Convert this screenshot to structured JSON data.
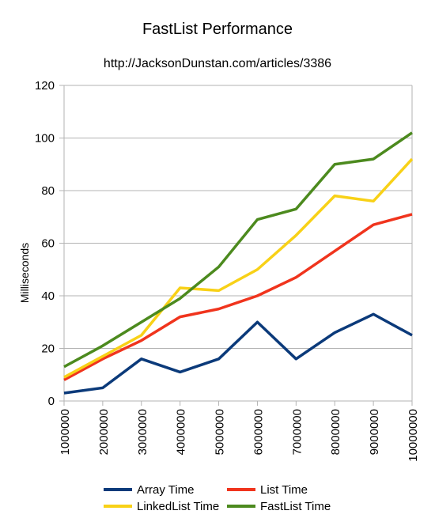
{
  "chart_data": {
    "type": "line",
    "title": "FastList Performance",
    "subtitle": "http://JacksonDunstan.com/articles/3386",
    "xlabel": "",
    "ylabel": "Milliseconds",
    "categories": [
      "1000000",
      "2000000",
      "3000000",
      "4000000",
      "5000000",
      "6000000",
      "7000000",
      "8000000",
      "9000000",
      "10000000"
    ],
    "ylim": [
      0,
      120
    ],
    "yticks": [
      "0",
      "20",
      "40",
      "60",
      "80",
      "100",
      "120"
    ],
    "grid": true,
    "legend_position": "bottom",
    "series": [
      {
        "name": "Array Time",
        "color": "#0b3a7a",
        "values": [
          3,
          5,
          16,
          11,
          16,
          30,
          16,
          26,
          33,
          25
        ]
      },
      {
        "name": "List Time",
        "color": "#f0341d",
        "values": [
          8,
          16,
          23,
          32,
          35,
          40,
          47,
          57,
          67,
          71
        ]
      },
      {
        "name": "LinkedList Time",
        "color": "#f8d117",
        "values": [
          9,
          17,
          25,
          43,
          42,
          50,
          63,
          78,
          76,
          92
        ]
      },
      {
        "name": "FastList Time",
        "color": "#4c8a1e",
        "values": [
          13,
          21,
          30,
          39,
          51,
          69,
          73,
          90,
          92,
          102
        ]
      }
    ]
  }
}
